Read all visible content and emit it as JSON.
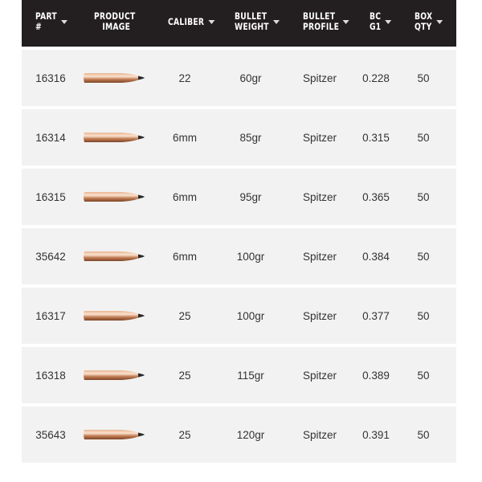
{
  "headers": [
    {
      "line1": "PART",
      "line2": "#"
    },
    {
      "line1": "PRODUCT",
      "line2": "IMAGE"
    },
    {
      "line1": "CALIBER",
      "line2": ""
    },
    {
      "line1": "BULLET",
      "line2": "WEIGHT"
    },
    {
      "line1": "BULLET",
      "line2": "PROFILE"
    },
    {
      "line1": "BC",
      "line2": "G1"
    },
    {
      "line1": "BOX",
      "line2": "QTY"
    }
  ],
  "rows": [
    {
      "part": "16316",
      "caliber": "22",
      "weight": "60gr",
      "profile": "Spitzer",
      "bc": "0.228",
      "qty": "50"
    },
    {
      "part": "16314",
      "caliber": "6mm",
      "weight": "85gr",
      "profile": "Spitzer",
      "bc": "0.315",
      "qty": "50"
    },
    {
      "part": "16315",
      "caliber": "6mm",
      "weight": "95gr",
      "profile": "Spitzer",
      "bc": "0.365",
      "qty": "50"
    },
    {
      "part": "35642",
      "caliber": "6mm",
      "weight": "100gr",
      "profile": "Spitzer",
      "bc": "0.384",
      "qty": "50"
    },
    {
      "part": "16317",
      "caliber": "25",
      "weight": "100gr",
      "profile": "Spitzer",
      "bc": "0.377",
      "qty": "50"
    },
    {
      "part": "16318",
      "caliber": "25",
      "weight": "115gr",
      "profile": "Spitzer",
      "bc": "0.389",
      "qty": "50"
    },
    {
      "part": "35643",
      "caliber": "25",
      "weight": "120gr",
      "profile": "Spitzer",
      "bc": "0.391",
      "qty": "50"
    }
  ],
  "colors": {
    "header_bg": "#231f20",
    "row_bg": "#f2f2f2",
    "copper": "#c8825a"
  }
}
